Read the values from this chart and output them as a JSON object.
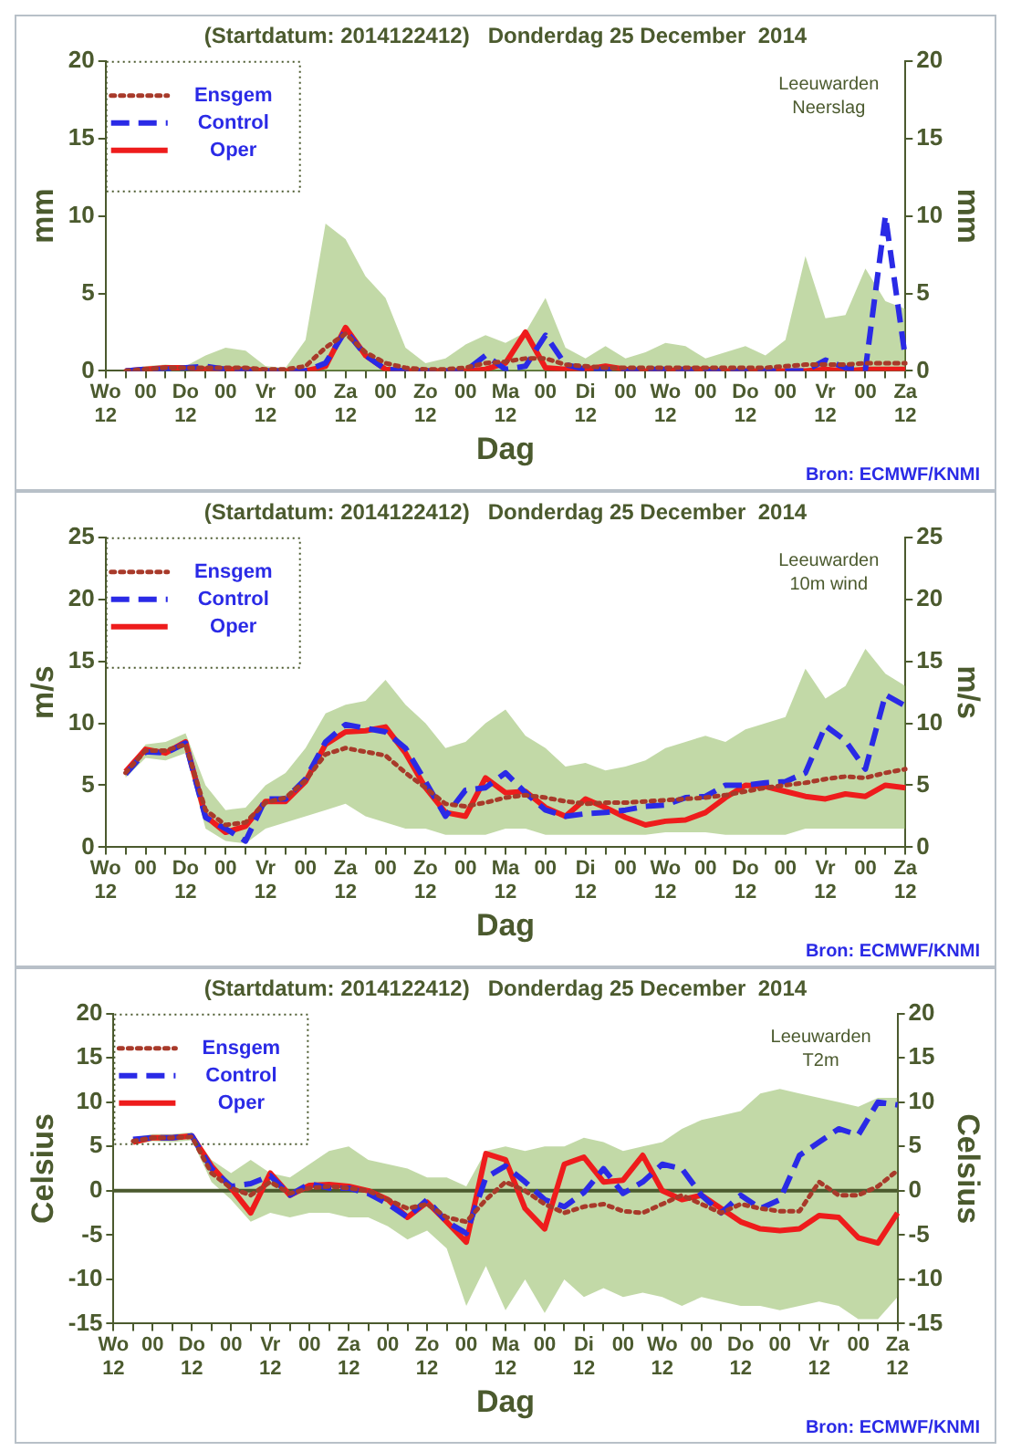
{
  "chart_data": [
    {
      "type": "line",
      "title": "(Startdatum: 2014122412)   Donderdag 25 December  2014",
      "xlabel": "Dag",
      "ylabel": "mm",
      "y2label": "mm",
      "annotations": [
        "Leeuwarden",
        "Neerslag",
        "Bron: ECMWF/KNMI"
      ],
      "legend": "top left",
      "categories": [
        "Wo\n12",
        null,
        "00",
        null,
        "Do\n12",
        null,
        "00",
        null,
        "Vr\n12",
        null,
        "00",
        null,
        "Za\n12",
        null,
        "00",
        null,
        "Zo\n12",
        null,
        "00",
        null,
        "Ma\n12",
        null,
        "00",
        null,
        "Di\n12",
        null,
        "00",
        null,
        "Wo\n12",
        null,
        "00",
        null,
        "Do\n12",
        null,
        "00",
        null,
        "Vr\n12",
        null,
        "00",
        null,
        "Za\n12"
      ],
      "ylim": [
        0,
        20
      ],
      "yticks": [
        0,
        5,
        10,
        15,
        20
      ],
      "y2lim": [
        0,
        20
      ],
      "y2ticks": [
        0,
        5,
        10,
        15,
        20
      ],
      "series": [
        {
          "name": "Ensgem",
          "color": "#a83a2a",
          "line_style": "dotted",
          "values": [
            null,
            0,
            0.1,
            0.2,
            0.2,
            0.2,
            0.2,
            0.2,
            0.1,
            0.1,
            0.3,
            1.5,
            2.4,
            1.2,
            0.5,
            0.2,
            0.1,
            0.1,
            0.2,
            0.5,
            0.6,
            0.8,
            0.8,
            0.4,
            0.3,
            0.2,
            0.2,
            0.2,
            0.2,
            0.2,
            0.2,
            0.2,
            0.2,
            0.2,
            0.3,
            0.4,
            0.4,
            0.4,
            0.5,
            0.5,
            0.5
          ],
          "lower": [
            null,
            0,
            0,
            0,
            0,
            0,
            0,
            0,
            0,
            0,
            0,
            0,
            0,
            0,
            0,
            0,
            0,
            0,
            0,
            0,
            0,
            0,
            0,
            0,
            0,
            0,
            0,
            0,
            0,
            0,
            0,
            0,
            0,
            0,
            0,
            0,
            0,
            0,
            0,
            0,
            0
          ],
          "upper": [
            null,
            0.1,
            0.3,
            0.4,
            0.3,
            1.0,
            1.5,
            1.3,
            0.3,
            0.2,
            2.0,
            9.5,
            8.5,
            6.1,
            4.7,
            1.5,
            0.5,
            0.8,
            1.7,
            2.3,
            1.8,
            2.5,
            4.7,
            1.5,
            0.8,
            1.6,
            0.8,
            1.2,
            1.8,
            1.6,
            0.8,
            1.2,
            1.6,
            1.0,
            2.0,
            7.4,
            3.4,
            3.6,
            6.6,
            4.5,
            4.0
          ]
        },
        {
          "name": "Control",
          "color": "#2a2ae6",
          "line_style": "dashed",
          "values": [
            null,
            0,
            0.1,
            0.1,
            0.2,
            0.3,
            0.1,
            0,
            0,
            0,
            0,
            0.5,
            2.6,
            1.0,
            0.1,
            0,
            0,
            0,
            0,
            1.0,
            0.1,
            0.3,
            2.3,
            0.4,
            0.1,
            0.1,
            0,
            0.1,
            0.1,
            0.1,
            0,
            0,
            0,
            0,
            0,
            0,
            0.7,
            0.2,
            0.1,
            10,
            0.8
          ]
        },
        {
          "name": "Oper",
          "color": "#ee1c1c",
          "line_style": "solid",
          "values": [
            null,
            0,
            0.1,
            0.2,
            0.2,
            0.1,
            0.1,
            0.1,
            0,
            0,
            0,
            0.3,
            2.8,
            1.0,
            0.1,
            0,
            0,
            0,
            0,
            0.1,
            0.5,
            2.5,
            0.2,
            0.1,
            0.1,
            0.3,
            0.1,
            0,
            0,
            0.1,
            0.1,
            0,
            0,
            0,
            0,
            0,
            0.1,
            0,
            0.1,
            0.1,
            0.1
          ]
        }
      ]
    },
    {
      "type": "line",
      "title": "(Startdatum: 2014122412)   Donderdag 25 December  2014",
      "xlabel": "Dag",
      "ylabel": "m/s",
      "y2label": "m/s",
      "annotations": [
        "Leeuwarden",
        "10m wind",
        "Bron: ECMWF/KNMI"
      ],
      "legend": "top left",
      "categories": [
        "Wo\n12",
        null,
        "00",
        null,
        "Do\n12",
        null,
        "00",
        null,
        "Vr\n12",
        null,
        "00",
        null,
        "Za\n12",
        null,
        "00",
        null,
        "Zo\n12",
        null,
        "00",
        null,
        "Ma\n12",
        null,
        "00",
        null,
        "Di\n12",
        null,
        "00",
        null,
        "Wo\n12",
        null,
        "00",
        null,
        "Do\n12",
        null,
        "00",
        null,
        "Vr\n12",
        null,
        "00",
        null,
        "Za\n12"
      ],
      "ylim": [
        0,
        25
      ],
      "yticks": [
        0,
        5,
        10,
        15,
        20,
        25
      ],
      "y2lim": [
        0,
        25
      ],
      "y2ticks": [
        0,
        5,
        10,
        15,
        20,
        25
      ],
      "series": [
        {
          "name": "Ensgem",
          "color": "#a83a2a",
          "line_style": "dotted",
          "values": [
            null,
            6.0,
            7.8,
            7.8,
            8.3,
            3.0,
            1.8,
            2.0,
            3.6,
            4.0,
            5.4,
            7.5,
            8.0,
            7.7,
            7.4,
            6.0,
            4.8,
            3.5,
            3.3,
            3.6,
            4.0,
            4.2,
            4.0,
            3.7,
            3.5,
            3.6,
            3.6,
            3.7,
            3.8,
            3.9,
            4.0,
            4.2,
            4.5,
            4.8,
            5.0,
            5.2,
            5.5,
            5.7,
            5.6,
            6.0,
            6.3
          ],
          "lower": [
            null,
            5.6,
            7.2,
            7.0,
            7.6,
            1.5,
            0.5,
            0.3,
            1.5,
            2.0,
            2.5,
            3.0,
            3.5,
            2.5,
            2.0,
            1.5,
            1.5,
            1.0,
            1.0,
            1.0,
            1.5,
            1.5,
            1.0,
            1.0,
            1.0,
            1.0,
            1.0,
            1.0,
            1.2,
            1.2,
            1.2,
            1.0,
            1.0,
            1.0,
            1.0,
            1.5,
            1.5,
            1.5,
            1.5,
            1.5,
            1.5
          ],
          "upper": [
            null,
            6.2,
            8.3,
            8.5,
            9.2,
            5.0,
            3.0,
            3.2,
            5.0,
            6.0,
            8.0,
            10.8,
            11.5,
            11.8,
            13.5,
            11.5,
            10.0,
            8.0,
            8.5,
            10.0,
            11.1,
            9.0,
            8.0,
            6.5,
            6.8,
            6.2,
            6.5,
            7.0,
            8.0,
            8.5,
            9.0,
            8.5,
            9.5,
            10.0,
            10.5,
            14.4,
            12.0,
            13.0,
            16.0,
            14.0,
            13.0
          ]
        },
        {
          "name": "Control",
          "color": "#2a2ae6",
          "line_style": "dashed",
          "values": [
            null,
            5.9,
            7.7,
            7.6,
            8.4,
            2.4,
            1.5,
            0.5,
            3.9,
            3.9,
            5.5,
            8.5,
            9.9,
            9.6,
            9.3,
            8.0,
            5.3,
            2.5,
            4.6,
            4.8,
            6.0,
            4.4,
            3.0,
            2.5,
            2.7,
            2.8,
            3.0,
            3.3,
            3.4,
            4.0,
            4.1,
            5.0,
            5.0,
            5.2,
            5.3,
            6.0,
            9.8,
            8.6,
            6.3,
            12.3,
            11.4
          ]
        },
        {
          "name": "Oper",
          "color": "#ee1c1c",
          "line_style": "solid",
          "values": [
            null,
            6.1,
            7.9,
            7.6,
            8.5,
            2.5,
            1.2,
            1.7,
            3.7,
            3.7,
            5.3,
            8.3,
            9.3,
            9.4,
            9.7,
            7.6,
            4.8,
            2.8,
            2.5,
            5.6,
            4.4,
            4.5,
            3.2,
            2.5,
            3.9,
            3.2,
            2.4,
            1.8,
            2.1,
            2.2,
            2.8,
            4.0,
            5.0,
            4.9,
            4.5,
            4.1,
            3.9,
            4.3,
            4.1,
            5.0,
            4.8
          ]
        }
      ]
    },
    {
      "type": "line",
      "title": "(Startdatum: 2014122412)   Donderdag 25 December  2014",
      "xlabel": "Dag",
      "ylabel": "Celsius",
      "y2label": "Celsius",
      "annotations": [
        "Leeuwarden",
        "T2m",
        "Bron: ECMWF/KNMI"
      ],
      "legend": "top left",
      "categories": [
        "Wo\n12",
        null,
        "00",
        null,
        "Do\n12",
        null,
        "00",
        null,
        "Vr\n12",
        null,
        "00",
        null,
        "Za\n12",
        null,
        "00",
        null,
        "Zo\n12",
        null,
        "00",
        null,
        "Ma\n12",
        null,
        "00",
        null,
        "Di\n12",
        null,
        "00",
        null,
        "Wo\n12",
        null,
        "00",
        null,
        "Do\n12",
        null,
        "00",
        null,
        "Vr\n12",
        null,
        "00",
        null,
        "Za\n12"
      ],
      "ylim": [
        -15,
        20
      ],
      "yticks": [
        -15,
        -10,
        -5,
        0,
        5,
        10,
        15,
        20
      ],
      "y2lim": [
        -15,
        20
      ],
      "y2ticks": [
        -15,
        -10,
        -5,
        0,
        5,
        10,
        15,
        20
      ],
      "ref_lines": [
        {
          "axis": "y",
          "value": 0,
          "color": "#4b5a2e"
        }
      ],
      "series": [
        {
          "name": "Ensgem",
          "color": "#a83a2a",
          "line_style": "dotted",
          "values": [
            null,
            5.6,
            6.0,
            6.0,
            6.1,
            2.0,
            0.3,
            -0.5,
            1.0,
            -0.3,
            0.3,
            0.5,
            0.3,
            0,
            -1.0,
            -2.0,
            -1.5,
            -3.0,
            -3.5,
            -1.0,
            1.0,
            0,
            -1.5,
            -2.5,
            -1.8,
            -1.5,
            -2.3,
            -2.5,
            -1.5,
            -0.5,
            -1.5,
            -2.5,
            -1.5,
            -2.0,
            -2.3,
            -2.3,
            1.0,
            -0.5,
            -0.5,
            0.5,
            2.3
          ],
          "lower": [
            null,
            5.2,
            5.6,
            5.5,
            5.7,
            1.0,
            -1.0,
            -3.5,
            -2.5,
            -3.0,
            -2.5,
            -2.5,
            -3.0,
            -3.0,
            -4.0,
            -5.5,
            -4.5,
            -6.5,
            -13.0,
            -8.5,
            -13.5,
            -10.0,
            -13.8,
            -10.0,
            -12.0,
            -11.0,
            -12.0,
            -11.5,
            -12.0,
            -13.0,
            -12.0,
            -12.5,
            -13.0,
            -13.0,
            -13.5,
            -13.0,
            -12.5,
            -13.0,
            -14.5,
            -14.5,
            -12.0
          ],
          "upper": [
            null,
            6.0,
            6.4,
            6.4,
            6.6,
            3.5,
            2.0,
            3.5,
            2.0,
            1.5,
            3.0,
            4.5,
            5.0,
            3.5,
            3.0,
            2.5,
            1.5,
            1.5,
            0.5,
            4.5,
            5.0,
            4.5,
            5.0,
            5.0,
            6.0,
            5.5,
            4.5,
            5.0,
            5.5,
            7.0,
            8.0,
            8.5,
            9.0,
            11.0,
            11.5,
            11.0,
            10.5,
            10.0,
            9.5,
            10.5,
            10.5
          ]
        },
        {
          "name": "Control",
          "color": "#2a2ae6",
          "line_style": "dashed",
          "values": [
            null,
            5.8,
            6.0,
            6.0,
            6.2,
            2.5,
            0.5,
            0.8,
            1.7,
            -0.5,
            0.8,
            0.3,
            0.3,
            -0.3,
            -1.5,
            -3.0,
            -1.0,
            -3.5,
            -4.8,
            1.5,
            2.8,
            1.0,
            -1.0,
            -1.8,
            -0.2,
            2.5,
            -0.3,
            1.0,
            3.0,
            2.5,
            -0.5,
            -2.5,
            -0.5,
            -2.0,
            -1.0,
            4.0,
            5.5,
            7.0,
            6.3,
            10.0,
            9.7
          ]
        },
        {
          "name": "Oper",
          "color": "#ee1c1c",
          "line_style": "solid",
          "values": [
            null,
            5.5,
            6.0,
            6.0,
            6.2,
            2.8,
            0.3,
            -2.5,
            2.0,
            -0.5,
            0.6,
            0.7,
            0.5,
            0,
            -1.0,
            -3.0,
            -1.3,
            -3.5,
            -5.8,
            4.2,
            3.5,
            -2.0,
            -4.3,
            3.0,
            3.8,
            1.0,
            1.2,
            4.0,
            0,
            -1.0,
            -0.5,
            -2.0,
            -3.5,
            -4.3,
            -4.5,
            -4.3,
            -2.8,
            -3.0,
            -5.3,
            -5.9,
            -2.5
          ]
        }
      ]
    }
  ]
}
